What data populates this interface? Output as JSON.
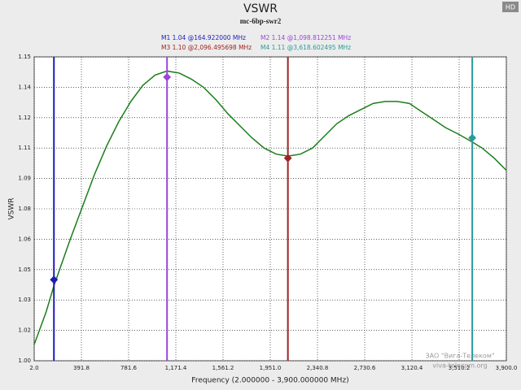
{
  "chart_data": {
    "type": "line",
    "title": "VSWR",
    "subtitle": "mc-6bp-swr2",
    "badge": "HD",
    "x_label": "Frequency (2.000000 - 3,900.000000 MHz)",
    "y_label": "VSWR",
    "watermark": [
      "ЗАО \"Вига-Телеком\"",
      "viva-telecom.org"
    ],
    "xlim": [
      2,
      3900
    ],
    "ylim": [
      1.0,
      1.15
    ],
    "grid": true,
    "xticks": [
      {
        "value": 2,
        "label": "2.0"
      },
      {
        "value": 391.8,
        "label": "391.8"
      },
      {
        "value": 781.6,
        "label": "781.6"
      },
      {
        "value": 1171.4,
        "label": "1,171.4"
      },
      {
        "value": 1561.2,
        "label": "1,561.2"
      },
      {
        "value": 1951,
        "label": "1,951.0"
      },
      {
        "value": 2340.8,
        "label": "2,340.8"
      },
      {
        "value": 2730.6,
        "label": "2,730.6"
      },
      {
        "value": 3120.4,
        "label": "3,120.4"
      },
      {
        "value": 3510.2,
        "label": "3,510.2"
      },
      {
        "value": 3900,
        "label": "3,900.0"
      }
    ],
    "yticks": [
      {
        "value": 1.0,
        "label": "1.00"
      },
      {
        "value": 1.015,
        "label": "1.02"
      },
      {
        "value": 1.03,
        "label": "1.03"
      },
      {
        "value": 1.045,
        "label": "1.05"
      },
      {
        "value": 1.06,
        "label": "1.06"
      },
      {
        "value": 1.075,
        "label": "1.08"
      },
      {
        "value": 1.09,
        "label": "1.09"
      },
      {
        "value": 1.105,
        "label": "1.11"
      },
      {
        "value": 1.12,
        "label": "1.12"
      },
      {
        "value": 1.135,
        "label": "1.14"
      },
      {
        "value": 1.15,
        "label": "1.15"
      }
    ],
    "series": [
      {
        "color": "#1b7d1b",
        "x": [
          2,
          100,
          164.9,
          300,
          400,
          500,
          600,
          700,
          800,
          900,
          1000,
          1098.8,
          1200,
          1300,
          1400,
          1500,
          1600,
          1700,
          1800,
          1900,
          2000,
          2096.5,
          2200,
          2300,
          2400,
          2500,
          2600,
          2700,
          2800,
          2900,
          3000,
          3100,
          3200,
          3300,
          3400,
          3500,
          3618.6,
          3700,
          3800,
          3900
        ],
        "values": [
          1.008,
          1.024,
          1.037,
          1.06,
          1.076,
          1.092,
          1.106,
          1.118,
          1.128,
          1.136,
          1.141,
          1.143,
          1.142,
          1.139,
          1.135,
          1.129,
          1.122,
          1.116,
          1.11,
          1.105,
          1.102,
          1.101,
          1.102,
          1.105,
          1.111,
          1.117,
          1.121,
          1.124,
          1.127,
          1.128,
          1.128,
          1.127,
          1.123,
          1.119,
          1.115,
          1.112,
          1.108,
          1.105,
          1.1,
          1.094
        ]
      }
    ],
    "markers": [
      {
        "label": "M1  1.04 @164.922000 MHz",
        "x": 164.922,
        "y": 1.04,
        "color": "#1c1cb8"
      },
      {
        "label": "M2  1.14 @1,098.812251 MHz",
        "x": 1098.812251,
        "y": 1.14,
        "color": "#9b45d9"
      },
      {
        "label": "M3  1.10 @2,096.495698 MHz",
        "x": 2096.495698,
        "y": 1.1,
        "color": "#a12222"
      },
      {
        "label": "M4  1.11 @3,618.602495 MHz",
        "x": 3618.602495,
        "y": 1.11,
        "color": "#2a9a9a"
      }
    ]
  }
}
